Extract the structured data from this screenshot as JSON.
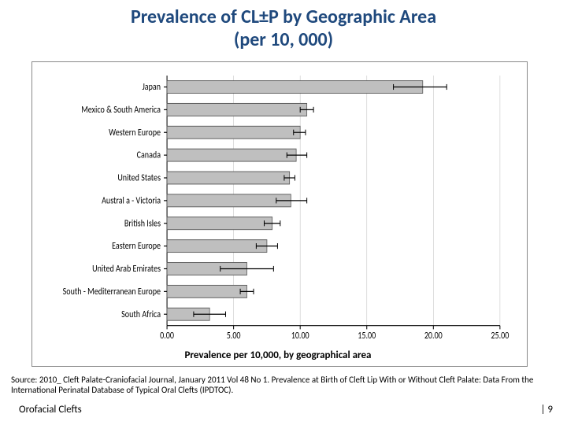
{
  "title": {
    "line1": "Prevalence of CL±P by Geographic Area",
    "line2": "(per 10, 000)"
  },
  "chart": {
    "type": "bar-horizontal",
    "x_title": "Prevalence per 10,000, by geographical area",
    "x_min": 0.0,
    "x_max": 25.0,
    "x_tick_step": 5.0,
    "x_tick_labels": [
      "0.00",
      "5.00",
      "10.00",
      "15.00",
      "20.00",
      "25.00"
    ],
    "bar_color": "#bfbfbf",
    "bar_border": "#5a5a5a",
    "error_color": "#000000",
    "grid_color": "#c9c9c9",
    "axis_color": "#000000",
    "label_fontsize": 10,
    "tick_fontsize": 10,
    "series": [
      {
        "label": "Japan",
        "value": 19.2,
        "err_lo": 17.0,
        "err_hi": 21.0
      },
      {
        "label": "Mexico & South America",
        "value": 10.5,
        "err_lo": 10.0,
        "err_hi": 11.0
      },
      {
        "label": "Western Europe",
        "value": 10.0,
        "err_lo": 9.5,
        "err_hi": 10.4
      },
      {
        "label": "Canada",
        "value": 9.7,
        "err_lo": 9.0,
        "err_hi": 10.5
      },
      {
        "label": "United States",
        "value": 9.2,
        "err_lo": 8.8,
        "err_hi": 9.6
      },
      {
        "label": "Austral a - Victoria",
        "value": 9.3,
        "err_lo": 8.2,
        "err_hi": 10.5
      },
      {
        "label": "British Isles",
        "value": 7.9,
        "err_lo": 7.3,
        "err_hi": 8.5
      },
      {
        "label": "Eastern Europe",
        "value": 7.5,
        "err_lo": 6.7,
        "err_hi": 8.3
      },
      {
        "label": "United Arab Emirates",
        "value": 6.0,
        "err_lo": 4.0,
        "err_hi": 8.0
      },
      {
        "label": "South - Mediterranean Europe",
        "value": 6.0,
        "err_lo": 5.5,
        "err_hi": 6.5
      },
      {
        "label": "South Africa",
        "value": 3.2,
        "err_lo": 2.0,
        "err_hi": 4.4
      }
    ]
  },
  "source_text": "Source: 2010_ Cleft Palate-Craniofacial Journal, January 2011 Vol 48 No 1. Prevalence at Birth of Cleft Lip With or Without Cleft Palate: Data From the International Perinatal Database of Typical Oral Clefts (IPDTOC).",
  "footer": {
    "left": "Orofacial Clefts",
    "right": "| 9"
  }
}
